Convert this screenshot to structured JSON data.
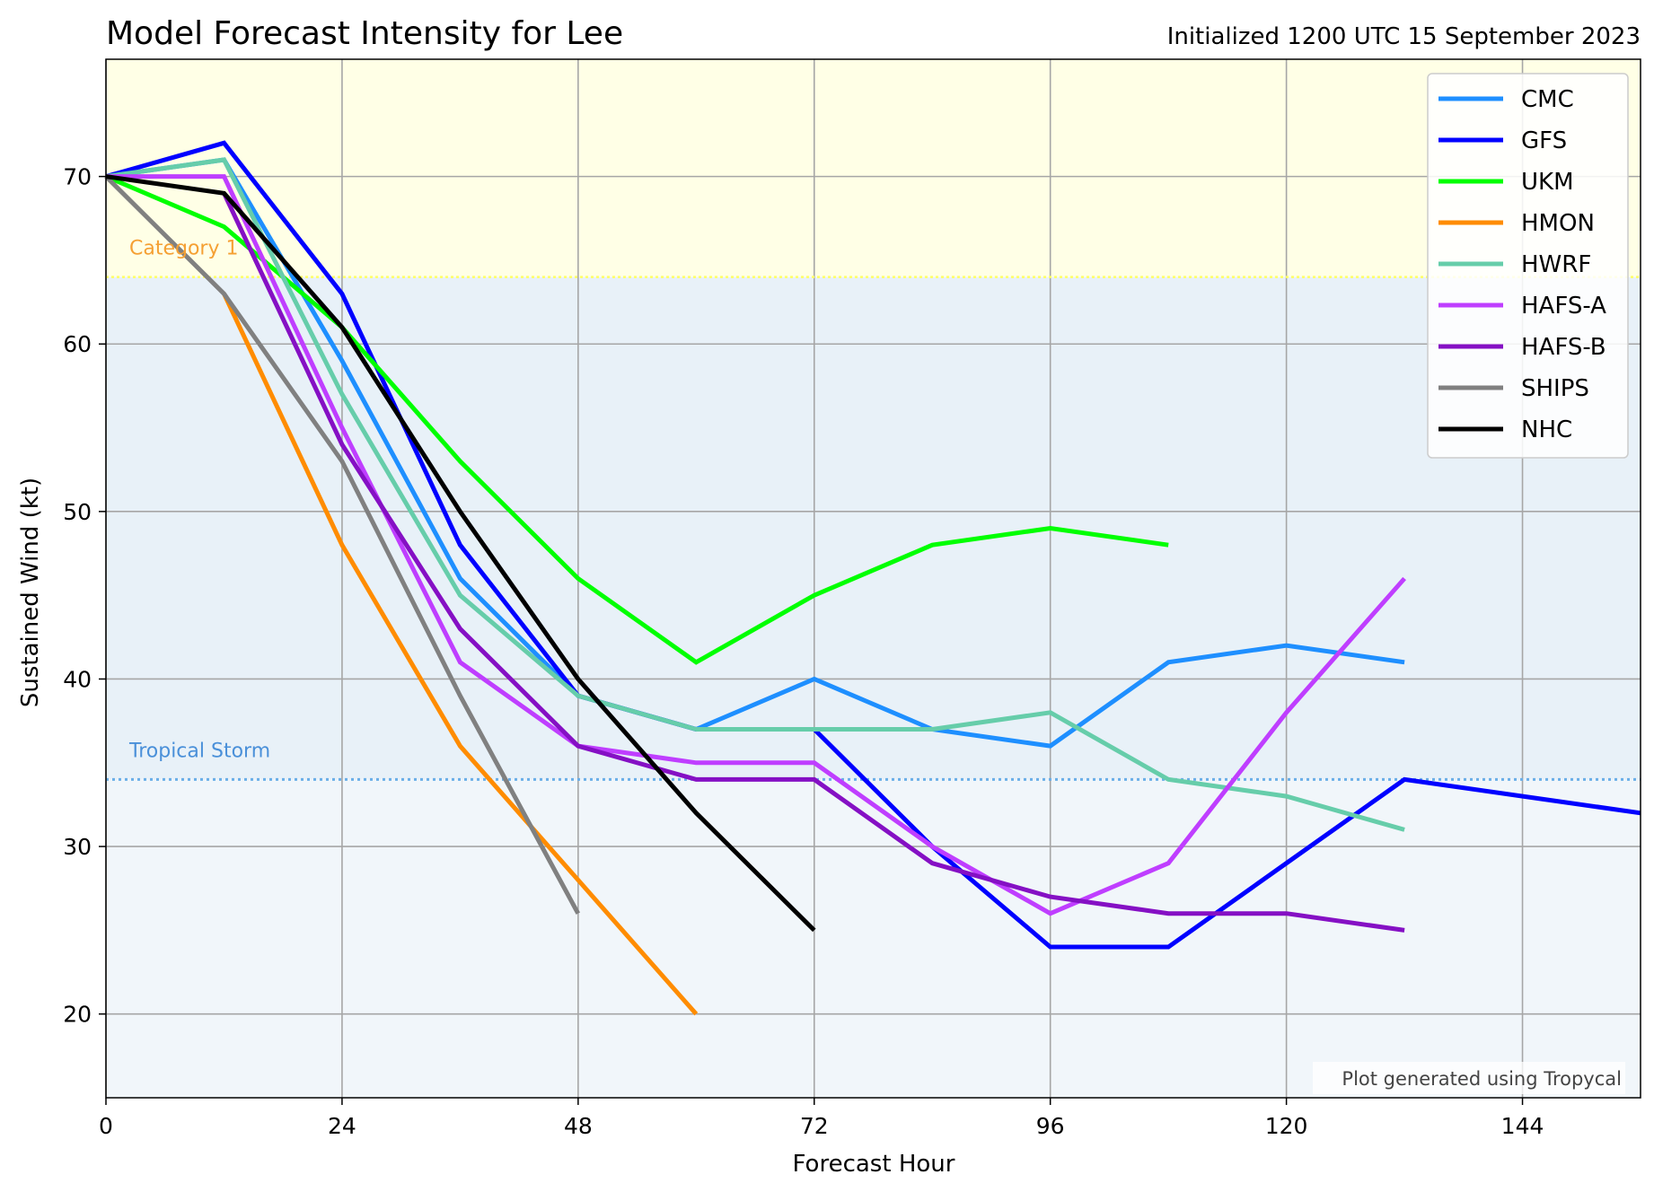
{
  "chart_data": {
    "type": "line",
    "title": "Model Forecast Intensity for Lee",
    "subtitle": "Initialized 1200 UTC 15 September 2023",
    "xlabel": "Forecast Hour",
    "ylabel": "Sustained Wind (kt)",
    "xlim": [
      0,
      156
    ],
    "ylim": [
      15,
      77
    ],
    "xticks": [
      0,
      24,
      48,
      72,
      96,
      120,
      144
    ],
    "yticks": [
      20,
      30,
      40,
      50,
      60,
      70
    ],
    "grid": true,
    "legend_position": "top-right",
    "thresholds": [
      {
        "label": "Category 1",
        "value": 64,
        "color": "#f5a033",
        "fill": "#ffffe6",
        "line_color": "#ffff66"
      },
      {
        "label": "Tropical Storm",
        "value": 34,
        "color": "#4a90d9",
        "fill": "#e8f1f8",
        "line_color": "#6aaee8"
      }
    ],
    "below_ts_fill": "#f1f6fa",
    "credit": "Plot generated using Tropycal",
    "series": [
      {
        "name": "CMC",
        "color": "#1e8fff",
        "x": [
          0,
          12,
          24,
          36,
          48,
          60,
          72,
          84,
          96,
          108,
          120,
          132
        ],
        "y": [
          70,
          71,
          59,
          46,
          39,
          37,
          40,
          37,
          36,
          41,
          42,
          41
        ]
      },
      {
        "name": "GFS",
        "color": "#0000ff",
        "x": [
          0,
          12,
          24,
          36,
          48,
          60,
          72,
          84,
          96,
          108,
          120,
          132,
          156
        ],
        "y": [
          70,
          72,
          63,
          48,
          39,
          37,
          37,
          30,
          24,
          24,
          29,
          34,
          32
        ]
      },
      {
        "name": "UKM",
        "color": "#00ff00",
        "x": [
          0,
          12,
          24,
          36,
          48,
          60,
          72,
          84,
          96,
          108
        ],
        "y": [
          70,
          67,
          61,
          53,
          46,
          41,
          45,
          48,
          49,
          48
        ]
      },
      {
        "name": "HMON",
        "color": "#ff8c00",
        "x": [
          12,
          24,
          36,
          48,
          60
        ],
        "y": [
          63,
          48,
          36,
          28,
          20
        ]
      },
      {
        "name": "HWRF",
        "color": "#66cdaa",
        "x": [
          0,
          12,
          24,
          36,
          48,
          60,
          72,
          84,
          96,
          108,
          120,
          132
        ],
        "y": [
          70,
          71,
          57,
          45,
          39,
          37,
          37,
          37,
          38,
          34,
          33,
          31
        ]
      },
      {
        "name": "HAFS-A",
        "color": "#bf3eff",
        "x": [
          0,
          12,
          24,
          36,
          48,
          60,
          72,
          84,
          96,
          108,
          120,
          132
        ],
        "y": [
          70,
          70,
          55,
          41,
          36,
          35,
          35,
          30,
          26,
          29,
          38,
          46
        ]
      },
      {
        "name": "HAFS-B",
        "color": "#8510c4",
        "x": [
          12,
          24,
          36,
          48,
          60,
          72,
          84,
          96,
          108,
          120,
          132
        ],
        "y": [
          69,
          54,
          43,
          36,
          34,
          34,
          29,
          27,
          26,
          26,
          25
        ]
      },
      {
        "name": "SHIPS",
        "color": "#808080",
        "x": [
          0,
          12,
          24,
          36,
          48
        ],
        "y": [
          70,
          63,
          53,
          39,
          26
        ]
      },
      {
        "name": "NHC",
        "color": "#000000",
        "x": [
          0,
          12,
          24,
          36,
          48,
          60,
          72
        ],
        "y": [
          70,
          69,
          61,
          50,
          40,
          32,
          25
        ]
      }
    ]
  }
}
